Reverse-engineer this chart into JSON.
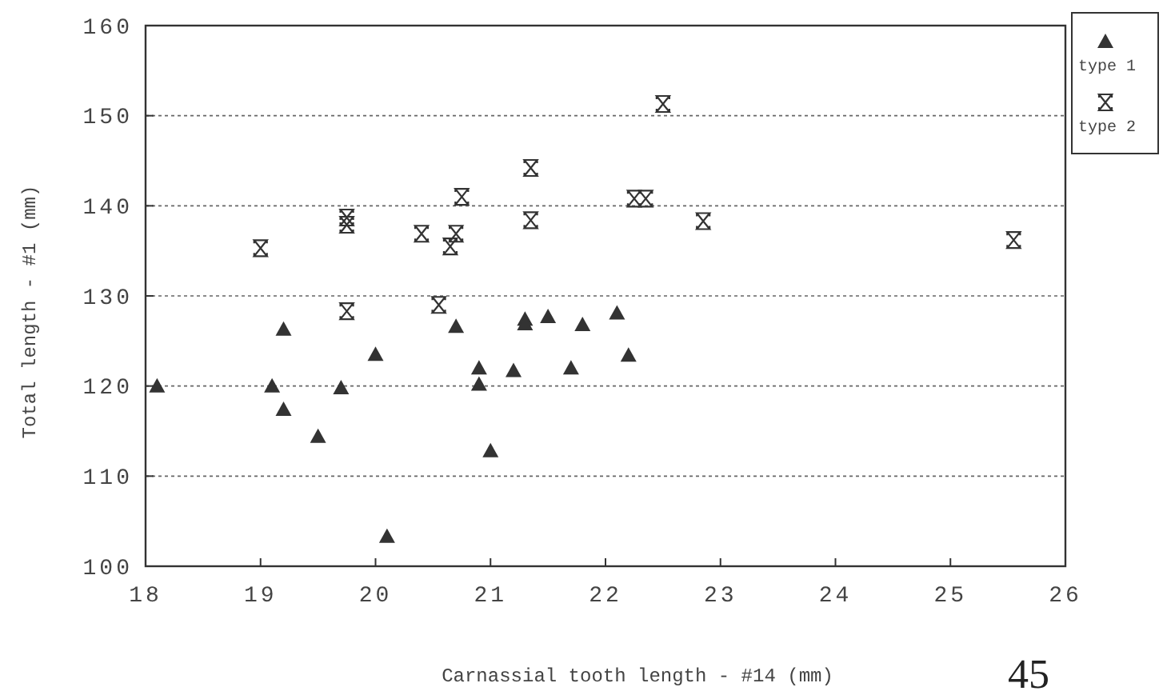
{
  "chart_data": {
    "type": "scatter",
    "xlabel": "Carnassial tooth length - #14 (mm)",
    "ylabel": "Total length - #1 (mm)",
    "xlim": [
      18,
      26
    ],
    "xticks": [
      18,
      19,
      20,
      21,
      22,
      23,
      24,
      25,
      26
    ],
    "ylim": [
      100,
      160
    ],
    "yticks": [
      100,
      110,
      120,
      130,
      140,
      150,
      160
    ],
    "grid": "y",
    "legend": "top right",
    "annotations": [
      "45"
    ],
    "series": [
      {
        "name": "type 1",
        "color": "#333333",
        "marker": "triangle",
        "x": [
          18.1,
          19.1,
          19.2,
          19.5,
          19.7,
          20.1,
          20.9,
          21.0,
          20.9,
          21.2,
          21.7,
          19.2,
          20.0,
          20.7,
          21.3,
          21.3,
          21.5,
          21.8,
          22.1,
          22.2
        ],
        "values": [
          120,
          120,
          117.4,
          114.4,
          119.8,
          103.3,
          120.2,
          112.8,
          122,
          121.7,
          122,
          126.3,
          123.5,
          126.6,
          127.4,
          126.9,
          127.7,
          126.8,
          128.1,
          123.4
        ]
      },
      {
        "name": "type 2",
        "color": "#333333",
        "x": [
          19.0,
          19.75,
          19.75,
          19.75,
          20.4,
          20.7,
          20.65,
          20.75,
          20.55,
          21.35,
          21.35,
          22.25,
          22.35,
          22.5,
          22.85,
          25.55
        ],
        "values": [
          135.3,
          138.7,
          137.9,
          128.3,
          136.9,
          136.9,
          135.5,
          141,
          129,
          144.2,
          138.4,
          140.8,
          140.8,
          151.3,
          138.3,
          136.2
        ]
      }
    ]
  }
}
